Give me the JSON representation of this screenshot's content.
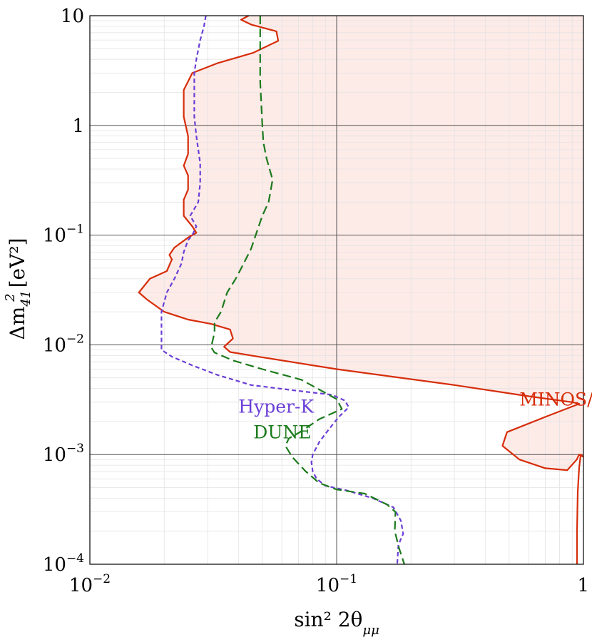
{
  "chart_data": {
    "type": "line",
    "title": "",
    "xlabel": "sin² 2θ",
    "xlabel_sub": "μμ",
    "ylabel": "Δm",
    "ylabel_sup": "2",
    "ylabel_sub": "41",
    "ylabel_unit": "[eV²]",
    "xscale": "log",
    "yscale": "log",
    "xlim": [
      0.01,
      1
    ],
    "ylim": [
      0.0001,
      10
    ],
    "grid": true,
    "x_ticks": [
      {
        "value": 0.01,
        "base": "10",
        "exp": "−2"
      },
      {
        "value": 0.1,
        "base": "10",
        "exp": "−1"
      },
      {
        "value": 1,
        "base": "1",
        "exp": ""
      }
    ],
    "y_ticks": [
      {
        "value": 0.0001,
        "base": "10",
        "exp": "−4"
      },
      {
        "value": 0.001,
        "base": "10",
        "exp": "−3"
      },
      {
        "value": 0.01,
        "base": "10",
        "exp": "−2"
      },
      {
        "value": 0.1,
        "base": "10",
        "exp": "−1"
      },
      {
        "value": 1,
        "base": "1",
        "exp": ""
      },
      {
        "value": 10,
        "base": "10",
        "exp": ""
      }
    ],
    "series": [
      {
        "name": "MINOS/MINOS+",
        "color": "#d62d0a",
        "fill": "#fdebe8",
        "dash": "solid",
        "label_at": [
          0.55,
          0.0028
        ],
        "x": [
          0.044,
          0.041,
          0.045,
          0.057,
          0.058,
          0.046,
          0.033,
          0.026,
          0.024,
          0.024,
          0.025,
          0.025,
          0.024,
          0.025,
          0.025,
          0.024,
          0.024,
          0.026,
          0.027,
          0.025,
          0.022,
          0.021,
          0.0215,
          0.0205,
          0.0175,
          0.0158,
          0.017,
          0.02,
          0.025,
          0.031,
          0.037,
          0.038,
          0.035,
          0.037,
          0.05,
          0.1,
          0.3,
          0.6,
          0.9,
          0.96,
          0.7,
          0.49,
          0.47,
          0.55,
          0.7,
          0.86,
          0.94,
          0.96,
          1.0
        ],
        "y": [
          10,
          9.2,
          8.3,
          7.2,
          5.9,
          4.6,
          3.7,
          3.0,
          2.1,
          1.2,
          0.8,
          0.55,
          0.43,
          0.35,
          0.26,
          0.21,
          0.15,
          0.12,
          0.105,
          0.095,
          0.077,
          0.066,
          0.06,
          0.047,
          0.04,
          0.03,
          0.026,
          0.02,
          0.017,
          0.0155,
          0.0138,
          0.0114,
          0.0096,
          0.0086,
          0.0077,
          0.006,
          0.0043,
          0.0034,
          0.003,
          0.0029,
          0.0022,
          0.0016,
          0.0012,
          0.0009,
          0.00075,
          0.00072,
          0.0009,
          0.001,
          0.00095
        ]
      },
      {
        "name": "",
        "color": "#d62d0a",
        "dash": "solid",
        "x": [
          0.942,
          0.942,
          0.948,
          0.96,
          0.975,
          1.0
        ],
        "y": [
          0.0001,
          0.0002,
          0.00045,
          0.00075,
          0.001,
          0.00095
        ]
      },
      {
        "name": "Hyper-K",
        "color": "#6a3fd6",
        "dash": "short",
        "label_at": [
          0.04,
          0.0024
        ],
        "x": [
          0.0295,
          0.029,
          0.028,
          0.027,
          0.0265,
          0.0265,
          0.0265,
          0.027,
          0.028,
          0.028,
          0.0275,
          0.0255,
          0.027,
          0.026,
          0.025,
          0.024,
          0.0235,
          0.022,
          0.0205,
          0.0195,
          0.0195,
          0.0215,
          0.026,
          0.033,
          0.045,
          0.07,
          0.096,
          0.108,
          0.112,
          0.102,
          0.093,
          0.085,
          0.08,
          0.079,
          0.08,
          0.083,
          0.09,
          0.11,
          0.14,
          0.17,
          0.182,
          0.186,
          0.178,
          0.176
        ],
        "y": [
          10,
          8.0,
          6.0,
          4.0,
          3.0,
          2.0,
          1.2,
          0.8,
          0.45,
          0.3,
          0.2,
          0.15,
          0.12,
          0.1,
          0.09,
          0.07,
          0.055,
          0.04,
          0.03,
          0.02,
          0.009,
          0.0078,
          0.0065,
          0.0053,
          0.0043,
          0.0038,
          0.0035,
          0.0031,
          0.0027,
          0.0022,
          0.0017,
          0.0013,
          0.001,
          0.00085,
          0.0007,
          0.0006,
          0.00052,
          0.00047,
          0.0004,
          0.00033,
          0.00025,
          0.00019,
          0.00015,
          0.0001
        ]
      },
      {
        "name": "DUNE",
        "color": "#1c7a1c",
        "dash": "long",
        "label_at": [
          0.046,
          0.0014
        ],
        "x": [
          0.049,
          0.049,
          0.049,
          0.049,
          0.05,
          0.0505,
          0.052,
          0.055,
          0.053,
          0.05,
          0.047,
          0.045,
          0.042,
          0.039,
          0.036,
          0.034,
          0.032,
          0.032,
          0.031,
          0.032,
          0.038,
          0.05,
          0.072,
          0.1,
          0.105,
          0.085,
          0.071,
          0.064,
          0.062,
          0.066,
          0.075,
          0.085,
          0.1,
          0.13,
          0.16,
          0.173,
          0.172,
          0.179,
          0.188
        ],
        "y": [
          10,
          7.0,
          5.0,
          2.5,
          1.0,
          0.7,
          0.5,
          0.32,
          0.2,
          0.15,
          0.1,
          0.075,
          0.055,
          0.04,
          0.03,
          0.02,
          0.016,
          0.013,
          0.0095,
          0.0085,
          0.0072,
          0.006,
          0.0048,
          0.0032,
          0.0026,
          0.0021,
          0.0016,
          0.0014,
          0.0012,
          0.00095,
          0.0007,
          0.00055,
          0.00048,
          0.00044,
          0.00035,
          0.0003,
          0.0002,
          0.00014,
          0.0001
        ]
      }
    ]
  }
}
